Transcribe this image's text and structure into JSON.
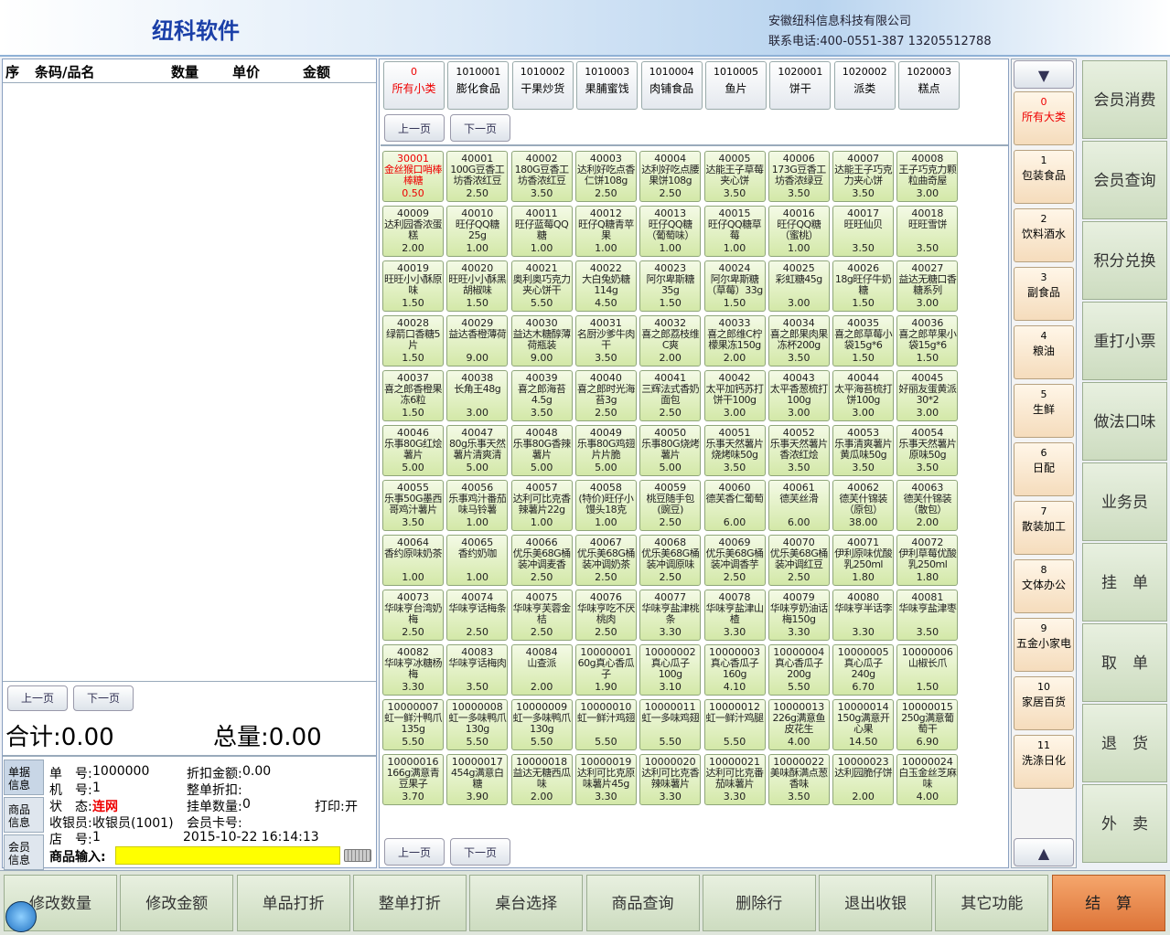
{
  "header": {
    "title": "纽科软件",
    "company": "安徽纽科信息科技有限公司",
    "phone": "联系电话:400-0551-387 13205512788"
  },
  "list": {
    "columns": [
      "序",
      "条码/品名",
      "数量",
      "单价",
      "金额"
    ],
    "prev": "上一页",
    "next": "下一页",
    "total": "合计:0.00",
    "quantity": "总量:0.00"
  },
  "tabs": [
    "单据信息",
    "商品信息",
    "会员信息"
  ],
  "info": [
    [
      "单　号:",
      "1000000"
    ],
    [
      "折扣金额:",
      "0.00"
    ],
    [
      "机　号:",
      "1"
    ],
    [
      "整单折扣:",
      ""
    ],
    [
      "状　态:",
      "连网"
    ],
    [
      "挂单数量:",
      "0"
    ],
    [
      "打印:",
      "开"
    ],
    [
      "收银员:",
      "收银员(1001)"
    ],
    [
      "会员卡号:",
      ""
    ],
    [
      "店　号:",
      "1"
    ],
    [
      "2015-10-22 16:14:13",
      ""
    ]
  ],
  "input_label": "商品输入:",
  "subcategories": [
    [
      "0",
      "所有小类"
    ],
    [
      "1010001",
      "膨化食品"
    ],
    [
      "1010002",
      "干果炒货"
    ],
    [
      "1010003",
      "果脯蜜饯"
    ],
    [
      "1010004",
      "肉铺食品"
    ],
    [
      "1010005",
      "鱼片"
    ],
    [
      "1020001",
      "饼干"
    ],
    [
      "1020002",
      "派类"
    ],
    [
      "1020003",
      "糕点"
    ]
  ],
  "pager": {
    "prev": "上一页",
    "next": "下一页"
  },
  "products": [
    [
      "30001",
      "金丝猴口哨棒棒糖",
      "0.50"
    ],
    [
      "40001",
      "100G豆香工坊香浓红豆",
      "2.50"
    ],
    [
      "40002",
      "180G豆香工坊香浓红豆",
      "3.50"
    ],
    [
      "40003",
      "达利好吃点香仁饼108g",
      "2.50"
    ],
    [
      "40004",
      "达利好吃点腰果饼108g",
      "2.50"
    ],
    [
      "40005",
      "达能王子草莓夹心饼",
      "3.50"
    ],
    [
      "40006",
      "173G豆香工坊香浓绿豆",
      "3.50"
    ],
    [
      "40007",
      "达能王子巧克力夹心饼",
      "3.50"
    ],
    [
      "40008",
      "王子巧克力颗粒曲奇屋",
      "3.00"
    ],
    [
      "40009",
      "达利园香浓蛋糕",
      "2.00"
    ],
    [
      "40010",
      "旺仔QQ糖25g",
      "1.00"
    ],
    [
      "40011",
      "旺仔蓝莓QQ糖",
      "1.00"
    ],
    [
      "40012",
      "旺仔Q糖青苹果",
      "1.00"
    ],
    [
      "40013",
      "旺仔QQ糖（葡萄味）",
      "1.00"
    ],
    [
      "40015",
      "旺仔QQ糖草莓",
      "1.00"
    ],
    [
      "40016",
      "旺仔QQ糖（蜜桃）",
      "1.00"
    ],
    [
      "40017",
      "旺旺仙贝",
      "3.50"
    ],
    [
      "40018",
      "旺旺雪饼",
      "3.50"
    ],
    [
      "40019",
      "旺旺小小酥原味",
      "1.50"
    ],
    [
      "40020",
      "旺旺小小酥黑胡椒味",
      "1.50"
    ],
    [
      "40021",
      "奥利奥巧克力夹心饼干",
      "5.50"
    ],
    [
      "40022",
      "大白兔奶糖114g",
      "4.50"
    ],
    [
      "40023",
      "阿尔卑斯糖35g",
      "1.50"
    ],
    [
      "40024",
      "阿尔卑斯糖（草莓）33g",
      "1.50"
    ],
    [
      "40025",
      "彩虹糖45g",
      "3.00"
    ],
    [
      "40026",
      "18g旺仔牛奶糖",
      "1.50"
    ],
    [
      "40027",
      "益达无糖口香糖系列",
      "3.00"
    ],
    [
      "40028",
      "绿箭口香糖5片",
      "1.50"
    ],
    [
      "40029",
      "益达香橙薄荷",
      "9.00"
    ],
    [
      "40030",
      "益达木糖醇薄荷瓶装",
      "9.00"
    ],
    [
      "40031",
      "名厨沙爹牛肉干",
      "3.50"
    ],
    [
      "40032",
      "喜之郎荔枝维C爽",
      "2.00"
    ],
    [
      "40033",
      "喜之郎维C柠檬果冻150g",
      "2.00"
    ],
    [
      "40034",
      "喜之郎果肉果冻杯200g",
      "3.50"
    ],
    [
      "40035",
      "喜之郎草莓小袋15g*6",
      "1.50"
    ],
    [
      "40036",
      "喜之郎苹果小袋15g*6",
      "1.50"
    ],
    [
      "40037",
      "喜之郎香橙果冻6粒",
      "1.50"
    ],
    [
      "40038",
      "长角王48g",
      "3.00"
    ],
    [
      "40039",
      "喜之郎海苔4.5g",
      "3.50"
    ],
    [
      "40040",
      "喜之郎时光海苔3g",
      "2.50"
    ],
    [
      "40041",
      "三辉法式香奶面包",
      "2.50"
    ],
    [
      "40042",
      "太平加钙苏打饼干100g",
      "3.00"
    ],
    [
      "40043",
      "太平香葱梳打100g",
      "3.00"
    ],
    [
      "40044",
      "太平海苔梳打饼100g",
      "3.00"
    ],
    [
      "40045",
      "好丽友蛋黄派30*2",
      "3.00"
    ],
    [
      "40046",
      "乐事80G红烩薯片",
      "5.00"
    ],
    [
      "40047",
      "80g乐事天然薯片清爽清",
      "5.00"
    ],
    [
      "40048",
      "乐事80G香辣薯片",
      "5.00"
    ],
    [
      "40049",
      "乐事80G鸡翅片片脆",
      "5.00"
    ],
    [
      "40050",
      "乐事80G烧烤薯片",
      "5.00"
    ],
    [
      "40051",
      "乐事天然薯片烧烤味50g",
      "3.50"
    ],
    [
      "40052",
      "乐事天然薯片香浓红烩",
      "3.50"
    ],
    [
      "40053",
      "乐事清爽薯片黄瓜味50g",
      "3.50"
    ],
    [
      "40054",
      "乐事天然薯片原味50g",
      "3.50"
    ],
    [
      "40055",
      "乐事50G墨西哥鸡汁薯片",
      "3.50"
    ],
    [
      "40056",
      "乐事鸡汁番茄味马铃薯",
      "1.00"
    ],
    [
      "40057",
      "达利可比克香辣薯片22g",
      "1.00"
    ],
    [
      "40058",
      "(特价)旺仔小馒头18克",
      "1.00"
    ],
    [
      "40059",
      "桃豆随手包(豌豆)",
      "2.50"
    ],
    [
      "40060",
      "德芙香仁葡萄",
      "6.00"
    ],
    [
      "40061",
      "德芙丝滑",
      "6.00"
    ],
    [
      "40062",
      "德芙什锦装（原包）",
      "38.00"
    ],
    [
      "40063",
      "德芙什锦装（散包）",
      "2.00"
    ],
    [
      "40064",
      "香约原味奶茶",
      "1.00"
    ],
    [
      "40065",
      "香约奶咖",
      "1.00"
    ],
    [
      "40066",
      "优乐美68G桶装冲调麦香",
      "2.50"
    ],
    [
      "40067",
      "优乐美68G桶装冲调奶茶",
      "2.50"
    ],
    [
      "40068",
      "优乐美68G桶装冲调原味",
      "2.50"
    ],
    [
      "40069",
      "优乐美68G桶装冲调香芋",
      "2.50"
    ],
    [
      "40070",
      "优乐美68G桶装冲调红豆",
      "2.50"
    ],
    [
      "40071",
      "伊利原味优酸乳250ml",
      "1.80"
    ],
    [
      "40072",
      "伊利草莓优酸乳250ml",
      "1.80"
    ],
    [
      "40073",
      "华味亨台湾奶梅",
      "2.50"
    ],
    [
      "40074",
      "华味亨话梅条",
      "2.50"
    ],
    [
      "40075",
      "华味亨芙蓉金桔",
      "2.50"
    ],
    [
      "40076",
      "华味亨吃不厌桃肉",
      "2.50"
    ],
    [
      "40077",
      "华味亨盐津桃条",
      "3.30"
    ],
    [
      "40078",
      "华味亨盐津山楂",
      "3.30"
    ],
    [
      "40079",
      "华味亨奶油话梅150g",
      "3.30"
    ],
    [
      "40080",
      "华味亨半话李",
      "3.30"
    ],
    [
      "40081",
      "华味亨盐津枣",
      "3.50"
    ],
    [
      "40082",
      "华味亨冰糖杨梅",
      "3.30"
    ],
    [
      "40083",
      "华味亨话梅肉",
      "3.50"
    ],
    [
      "40084",
      "山查派",
      "2.00"
    ],
    [
      "10000001",
      "60g真心香瓜子",
      "1.90"
    ],
    [
      "10000002",
      "真心瓜子100g",
      "3.10"
    ],
    [
      "10000003",
      "真心香瓜子160g",
      "4.10"
    ],
    [
      "10000004",
      "真心香瓜子200g",
      "5.50"
    ],
    [
      "10000005",
      "真心瓜子240g",
      "6.70"
    ],
    [
      "10000006",
      "山椒长爪",
      "1.50"
    ],
    [
      "10000007",
      "虹一鲜汁鸭爪135g",
      "5.50"
    ],
    [
      "10000008",
      "虹一多味鸭爪130g",
      "5.50"
    ],
    [
      "10000009",
      "虹一多味鸭爪130g",
      "5.50"
    ],
    [
      "10000010",
      "虹一鲜汁鸡翅",
      "5.50"
    ],
    [
      "10000011",
      "虹一多味鸡翅",
      "5.50"
    ],
    [
      "10000012",
      "虹一鲜汁鸡腿",
      "5.50"
    ],
    [
      "10000013",
      "226g满意鱼皮花生",
      "4.00"
    ],
    [
      "10000014",
      "150g满意开心果",
      "14.50"
    ],
    [
      "10000015",
      "250g满意葡萄干",
      "6.90"
    ],
    [
      "10000016",
      "166g满意青豆果子",
      "3.70"
    ],
    [
      "10000017",
      "454g满意白糖",
      "3.90"
    ],
    [
      "10000018",
      "益达无糖西瓜味",
      "2.00"
    ],
    [
      "10000019",
      "达利可比克原味薯片45g",
      "3.30"
    ],
    [
      "10000020",
      "达利可比克香辣味薯片",
      "3.30"
    ],
    [
      "10000021",
      "达利可比克番茄味薯片",
      "3.30"
    ],
    [
      "10000022",
      "美味酥满点葱香味",
      "3.50"
    ],
    [
      "10000023",
      "达利园脆仔饼",
      "2.00"
    ],
    [
      "10000024",
      "白玉金丝芝麻味",
      "4.00"
    ]
  ],
  "categories": [
    [
      "0",
      "所有大类"
    ],
    [
      "1",
      "包装食品"
    ],
    [
      "2",
      "饮料酒水"
    ],
    [
      "3",
      "副食品"
    ],
    [
      "4",
      "粮油"
    ],
    [
      "5",
      "生鲜"
    ],
    [
      "6",
      "日配"
    ],
    [
      "7",
      "散装加工"
    ],
    [
      "8",
      "文体办公"
    ],
    [
      "9",
      "五金小家电"
    ],
    [
      "10",
      "家居百货"
    ],
    [
      "11",
      "洗涤日化"
    ]
  ],
  "functions": [
    "会员消费",
    "会员查询",
    "积分兑换",
    "重打小票",
    "做法口味",
    "业务员",
    "挂　单",
    "取　单",
    "退　货",
    "外　卖"
  ],
  "toolbar": [
    "修改数量",
    "修改金额",
    "单品打折",
    "整单打折",
    "桌台选择",
    "商品查询",
    "删除行",
    "退出收银",
    "其它功能",
    "结　算"
  ]
}
